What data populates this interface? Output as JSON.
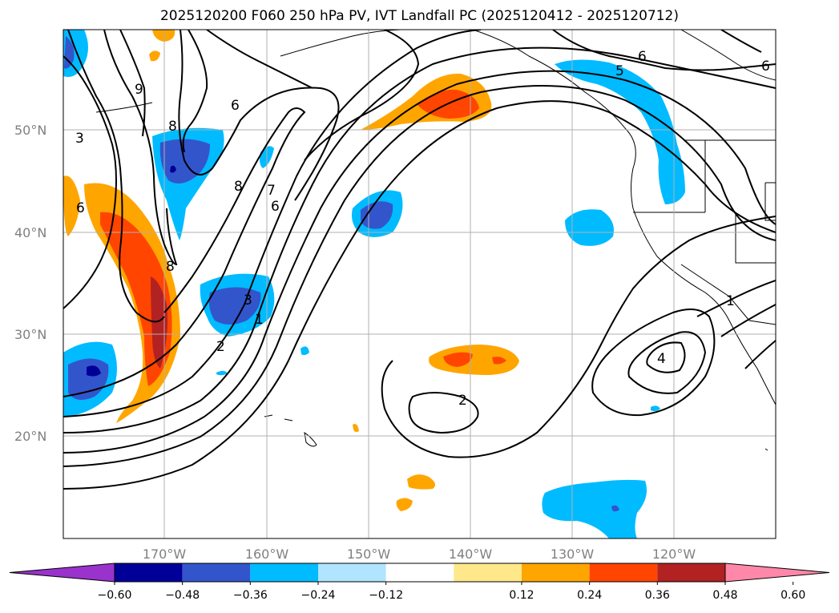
{
  "title": "2025120200 F060 250 hPa PV, IVT Landfall PC (2025120412 - 2025120712)",
  "lat_labels": [
    "50°N",
    "40°N",
    "30°N",
    "20°N"
  ],
  "lon_labels": [
    "170°W",
    "160°W",
    "150°W",
    "140°W",
    "130°W",
    "120°W"
  ],
  "colorbar": {
    "ticks": [
      "−0.60",
      "−0.48",
      "−0.36",
      "−0.24",
      "−0.12",
      "0.12",
      "0.24",
      "0.36",
      "0.48",
      "0.60"
    ],
    "colors": [
      "#9933cc",
      "#000099",
      "#3355cc",
      "#00bbff",
      "#b0e4ff",
      "#ffffff",
      "#ffe88a",
      "#ffa500",
      "#ff4500",
      "#b22222",
      "#ff88aa"
    ]
  },
  "contour_labels": {
    "c1": "6",
    "c2": "6",
    "c3": "9",
    "c4": "3",
    "c5": "8",
    "c6": "8",
    "c7": "7",
    "c8": "6",
    "c9": "8",
    "c10": "3",
    "c11": "2",
    "c12": "1",
    "c13": "2",
    "c14": "4",
    "c15": "1",
    "c16": "5",
    "c17": "6",
    "c18": "6"
  }
}
